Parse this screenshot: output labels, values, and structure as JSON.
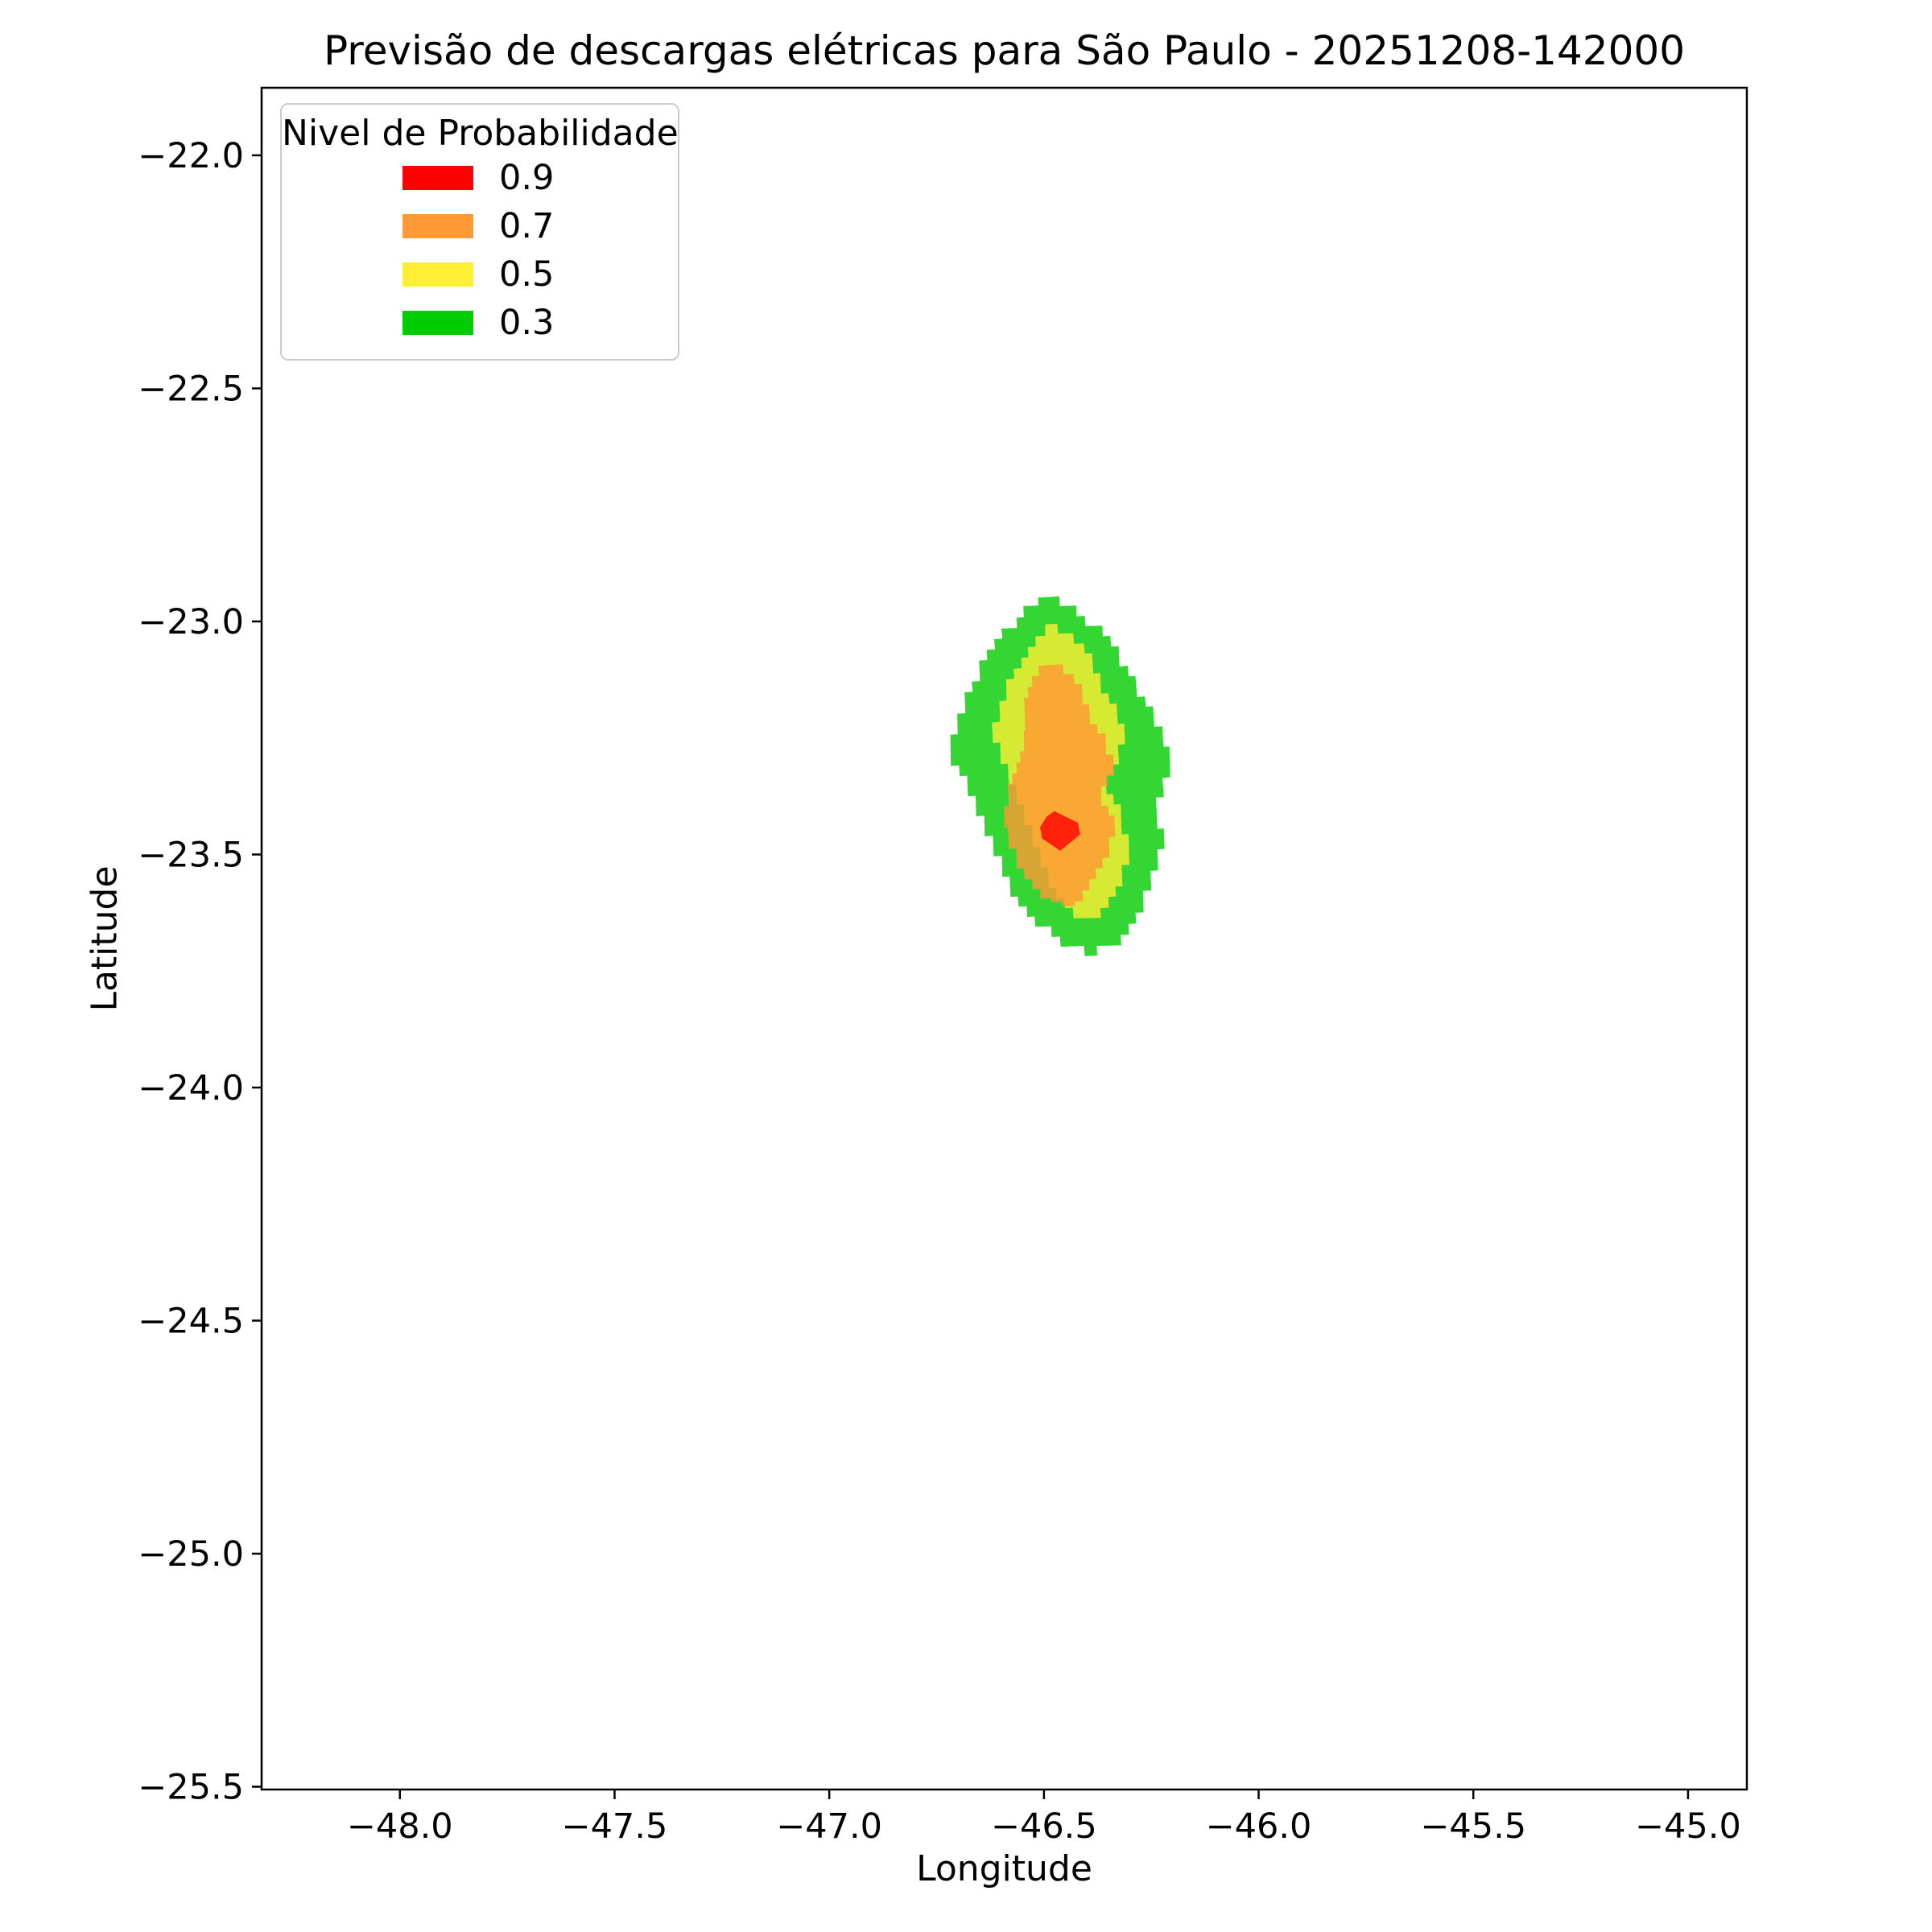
{
  "title": "Previsão de descargas elétricas para São Paulo - 20251208-142000",
  "axes": {
    "xlabel": "Longitude",
    "ylabel": "Latitude",
    "xlim": [
      -48.322,
      -44.863
    ],
    "ylim": [
      -25.506,
      -21.855
    ],
    "xticks": [
      {
        "value": -48.0,
        "label": "−48.0"
      },
      {
        "value": -47.5,
        "label": "−47.5"
      },
      {
        "value": -47.0,
        "label": "−47.0"
      },
      {
        "value": -46.5,
        "label": "−46.5"
      },
      {
        "value": -46.0,
        "label": "−46.0"
      },
      {
        "value": -45.5,
        "label": "−45.5"
      },
      {
        "value": -45.0,
        "label": "−45.0"
      }
    ],
    "yticks": [
      {
        "value": -22.0,
        "label": "−22.0"
      },
      {
        "value": -22.5,
        "label": "−22.5"
      },
      {
        "value": -23.0,
        "label": "−23.0"
      },
      {
        "value": -23.5,
        "label": "−23.5"
      },
      {
        "value": -24.0,
        "label": "−24.0"
      },
      {
        "value": -24.5,
        "label": "−24.5"
      },
      {
        "value": -25.0,
        "label": "−25.0"
      },
      {
        "value": -25.5,
        "label": "−25.5"
      }
    ]
  },
  "legend": {
    "title": "Nivel de Probabilidade",
    "entries": [
      {
        "label": "0.9",
        "color": "#ff0000"
      },
      {
        "label": "0.7",
        "color": "#ff9933"
      },
      {
        "label": "0.5",
        "color": "#ffee33"
      },
      {
        "label": "0.3",
        "color": "#00cc00"
      }
    ]
  },
  "chart_data": {
    "type": "filled_contour",
    "title": "Previsão de descargas elétricas para São Paulo - 20251208-142000",
    "xlabel": "Longitude",
    "ylabel": "Latitude",
    "xlim": [
      -48.322,
      -44.863
    ],
    "ylim": [
      -25.506,
      -21.855
    ],
    "grid": false,
    "legend_position": "upper left",
    "fill_opacity": 0.8,
    "levels": [
      {
        "level": 0.3,
        "color": "#00cc00",
        "polygon": [
          [
            -46.496,
            -22.948
          ],
          [
            -46.464,
            -22.946
          ],
          [
            -46.463,
            -22.967
          ],
          [
            -46.425,
            -22.966
          ],
          [
            -46.424,
            -22.989
          ],
          [
            -46.405,
            -22.988
          ],
          [
            -46.403,
            -23.01
          ],
          [
            -46.364,
            -23.009
          ],
          [
            -46.363,
            -23.032
          ],
          [
            -46.346,
            -23.031
          ],
          [
            -46.343,
            -23.054
          ],
          [
            -46.326,
            -23.053
          ],
          [
            -46.324,
            -23.097
          ],
          [
            -46.305,
            -23.095
          ],
          [
            -46.303,
            -23.118
          ],
          [
            -46.287,
            -23.117
          ],
          [
            -46.283,
            -23.162
          ],
          [
            -46.265,
            -23.161
          ],
          [
            -46.263,
            -23.183
          ],
          [
            -46.246,
            -23.182
          ],
          [
            -46.243,
            -23.226
          ],
          [
            -46.224,
            -23.225
          ],
          [
            -46.222,
            -23.269
          ],
          [
            -46.208,
            -23.268
          ],
          [
            -46.206,
            -23.334
          ],
          [
            -46.224,
            -23.336
          ],
          [
            -46.221,
            -23.377
          ],
          [
            -46.239,
            -23.378
          ],
          [
            -46.236,
            -23.445
          ],
          [
            -46.221,
            -23.444
          ],
          [
            -46.219,
            -23.488
          ],
          [
            -46.236,
            -23.489
          ],
          [
            -46.234,
            -23.534
          ],
          [
            -46.252,
            -23.535
          ],
          [
            -46.25,
            -23.577
          ],
          [
            -46.269,
            -23.578
          ],
          [
            -46.268,
            -23.624
          ],
          [
            -46.287,
            -23.625
          ],
          [
            -46.285,
            -23.648
          ],
          [
            -46.303,
            -23.649
          ],
          [
            -46.302,
            -23.672
          ],
          [
            -46.321,
            -23.672
          ],
          [
            -46.32,
            -23.695
          ],
          [
            -46.377,
            -23.696
          ],
          [
            -46.376,
            -23.717
          ],
          [
            -46.405,
            -23.718
          ],
          [
            -46.407,
            -23.696
          ],
          [
            -46.461,
            -23.698
          ],
          [
            -46.463,
            -23.676
          ],
          [
            -46.482,
            -23.677
          ],
          [
            -46.483,
            -23.654
          ],
          [
            -46.52,
            -23.655
          ],
          [
            -46.522,
            -23.633
          ],
          [
            -46.539,
            -23.634
          ],
          [
            -46.54,
            -23.611
          ],
          [
            -46.559,
            -23.612
          ],
          [
            -46.561,
            -23.59
          ],
          [
            -46.578,
            -23.591
          ],
          [
            -46.58,
            -23.547
          ],
          [
            -46.597,
            -23.548
          ],
          [
            -46.598,
            -23.503
          ],
          [
            -46.617,
            -23.504
          ],
          [
            -46.619,
            -23.46
          ],
          [
            -46.638,
            -23.461
          ],
          [
            -46.639,
            -23.417
          ],
          [
            -46.658,
            -23.418
          ],
          [
            -46.659,
            -23.374
          ],
          [
            -46.677,
            -23.375
          ],
          [
            -46.679,
            -23.331
          ],
          [
            -46.696,
            -23.332
          ],
          [
            -46.698,
            -23.309
          ],
          [
            -46.717,
            -23.31
          ],
          [
            -46.718,
            -23.243
          ],
          [
            -46.701,
            -23.242
          ],
          [
            -46.702,
            -23.198
          ],
          [
            -46.683,
            -23.197
          ],
          [
            -46.685,
            -23.152
          ],
          [
            -46.666,
            -23.151
          ],
          [
            -46.668,
            -23.129
          ],
          [
            -46.649,
            -23.128
          ],
          [
            -46.651,
            -23.084
          ],
          [
            -46.632,
            -23.083
          ],
          [
            -46.633,
            -23.061
          ],
          [
            -46.614,
            -23.06
          ],
          [
            -46.616,
            -23.038
          ],
          [
            -46.597,
            -23.037
          ],
          [
            -46.599,
            -23.015
          ],
          [
            -46.563,
            -23.014
          ],
          [
            -46.564,
            -22.992
          ],
          [
            -46.547,
            -22.991
          ],
          [
            -46.548,
            -22.967
          ],
          [
            -46.513,
            -22.966
          ],
          [
            -46.514,
            -22.949
          ]
        ]
      },
      {
        "level": 0.5,
        "color": "#ffee33",
        "polygon": [
          [
            -46.497,
            -23.006
          ],
          [
            -46.469,
            -23.005
          ],
          [
            -46.467,
            -23.026
          ],
          [
            -46.432,
            -23.025
          ],
          [
            -46.43,
            -23.048
          ],
          [
            -46.407,
            -23.047
          ],
          [
            -46.405,
            -23.069
          ],
          [
            -46.388,
            -23.068
          ],
          [
            -46.385,
            -23.112
          ],
          [
            -46.369,
            -23.111
          ],
          [
            -46.367,
            -23.155
          ],
          [
            -46.35,
            -23.154
          ],
          [
            -46.347,
            -23.177
          ],
          [
            -46.331,
            -23.176
          ],
          [
            -46.328,
            -23.22
          ],
          [
            -46.313,
            -23.219
          ],
          [
            -46.311,
            -23.263
          ],
          [
            -46.328,
            -23.265
          ],
          [
            -46.325,
            -23.306
          ],
          [
            -46.341,
            -23.308
          ],
          [
            -46.339,
            -23.328
          ],
          [
            -46.356,
            -23.329
          ],
          [
            -46.354,
            -23.371
          ],
          [
            -46.339,
            -23.37
          ],
          [
            -46.337,
            -23.393
          ],
          [
            -46.321,
            -23.392
          ],
          [
            -46.319,
            -23.457
          ],
          [
            -46.303,
            -23.456
          ],
          [
            -46.301,
            -23.522
          ],
          [
            -46.319,
            -23.523
          ],
          [
            -46.317,
            -23.568
          ],
          [
            -46.334,
            -23.569
          ],
          [
            -46.332,
            -23.59
          ],
          [
            -46.35,
            -23.591
          ],
          [
            -46.349,
            -23.614
          ],
          [
            -46.369,
            -23.615
          ],
          [
            -46.367,
            -23.636
          ],
          [
            -46.431,
            -23.637
          ],
          [
            -46.433,
            -23.614
          ],
          [
            -46.451,
            -23.615
          ],
          [
            -46.453,
            -23.594
          ],
          [
            -46.47,
            -23.595
          ],
          [
            -46.472,
            -23.572
          ],
          [
            -46.489,
            -23.572
          ],
          [
            -46.491,
            -23.527
          ],
          [
            -46.507,
            -23.528
          ],
          [
            -46.509,
            -23.483
          ],
          [
            -46.526,
            -23.484
          ],
          [
            -46.528,
            -23.437
          ],
          [
            -46.545,
            -23.438
          ],
          [
            -46.547,
            -23.393
          ],
          [
            -46.563,
            -23.394
          ],
          [
            -46.565,
            -23.349
          ],
          [
            -46.582,
            -23.35
          ],
          [
            -46.584,
            -23.305
          ],
          [
            -46.601,
            -23.306
          ],
          [
            -46.602,
            -23.26
          ],
          [
            -46.619,
            -23.261
          ],
          [
            -46.621,
            -23.217
          ],
          [
            -46.602,
            -23.215
          ],
          [
            -46.604,
            -23.171
          ],
          [
            -46.587,
            -23.17
          ],
          [
            -46.588,
            -23.124
          ],
          [
            -46.569,
            -23.123
          ],
          [
            -46.571,
            -23.102
          ],
          [
            -46.552,
            -23.1
          ],
          [
            -46.553,
            -23.078
          ],
          [
            -46.536,
            -23.077
          ],
          [
            -46.538,
            -23.055
          ],
          [
            -46.519,
            -23.054
          ],
          [
            -46.52,
            -23.032
          ],
          [
            -46.497,
            -23.031
          ]
        ]
      },
      {
        "level": 0.7,
        "color": "#ff9933",
        "polygon": [
          [
            -46.494,
            -23.094
          ],
          [
            -46.456,
            -23.092
          ],
          [
            -46.454,
            -23.114
          ],
          [
            -46.431,
            -23.112
          ],
          [
            -46.429,
            -23.135
          ],
          [
            -46.412,
            -23.134
          ],
          [
            -46.41,
            -23.178
          ],
          [
            -46.395,
            -23.177
          ],
          [
            -46.392,
            -23.221
          ],
          [
            -46.376,
            -23.22
          ],
          [
            -46.375,
            -23.241
          ],
          [
            -46.357,
            -23.24
          ],
          [
            -46.355,
            -23.286
          ],
          [
            -46.339,
            -23.285
          ],
          [
            -46.336,
            -23.331
          ],
          [
            -46.353,
            -23.332
          ],
          [
            -46.351,
            -23.352
          ],
          [
            -46.367,
            -23.354
          ],
          [
            -46.366,
            -23.396
          ],
          [
            -46.351,
            -23.395
          ],
          [
            -46.349,
            -23.417
          ],
          [
            -46.336,
            -23.416
          ],
          [
            -46.334,
            -23.462
          ],
          [
            -46.349,
            -23.463
          ],
          [
            -46.347,
            -23.506
          ],
          [
            -46.364,
            -23.508
          ],
          [
            -46.363,
            -23.529
          ],
          [
            -46.38,
            -23.53
          ],
          [
            -46.378,
            -23.552
          ],
          [
            -46.395,
            -23.554
          ],
          [
            -46.394,
            -23.577
          ],
          [
            -46.411,
            -23.578
          ],
          [
            -46.409,
            -23.6
          ],
          [
            -46.428,
            -23.601
          ],
          [
            -46.427,
            -23.61
          ],
          [
            -46.456,
            -23.611
          ],
          [
            -46.458,
            -23.602
          ],
          [
            -46.483,
            -23.602
          ],
          [
            -46.484,
            -23.594
          ],
          [
            -46.508,
            -23.595
          ],
          [
            -46.509,
            -23.574
          ],
          [
            -46.526,
            -23.575
          ],
          [
            -46.528,
            -23.552
          ],
          [
            -46.545,
            -23.554
          ],
          [
            -46.547,
            -23.53
          ],
          [
            -46.563,
            -23.531
          ],
          [
            -46.565,
            -23.487
          ],
          [
            -46.582,
            -23.488
          ],
          [
            -46.584,
            -23.442
          ],
          [
            -46.592,
            -23.443
          ],
          [
            -46.593,
            -23.396
          ],
          [
            -46.582,
            -23.395
          ],
          [
            -46.584,
            -23.349
          ],
          [
            -46.573,
            -23.348
          ],
          [
            -46.574,
            -23.327
          ],
          [
            -46.563,
            -23.325
          ],
          [
            -46.565,
            -23.303
          ],
          [
            -46.554,
            -23.302
          ],
          [
            -46.556,
            -23.28
          ],
          [
            -46.546,
            -23.278
          ],
          [
            -46.547,
            -23.235
          ],
          [
            -46.544,
            -23.234
          ],
          [
            -46.546,
            -23.164
          ],
          [
            -46.536,
            -23.163
          ],
          [
            -46.538,
            -23.141
          ],
          [
            -46.527,
            -23.14
          ],
          [
            -46.528,
            -23.118
          ],
          [
            -46.511,
            -23.117
          ],
          [
            -46.513,
            -23.095
          ]
        ]
      },
      {
        "level": 0.9,
        "color": "#ff0000",
        "polygon": [
          [
            -46.476,
            -23.407
          ],
          [
            -46.421,
            -23.432
          ],
          [
            -46.416,
            -23.457
          ],
          [
            -46.462,
            -23.492
          ],
          [
            -46.504,
            -23.466
          ],
          [
            -46.509,
            -23.442
          ],
          [
            -46.494,
            -23.419
          ]
        ]
      }
    ]
  }
}
